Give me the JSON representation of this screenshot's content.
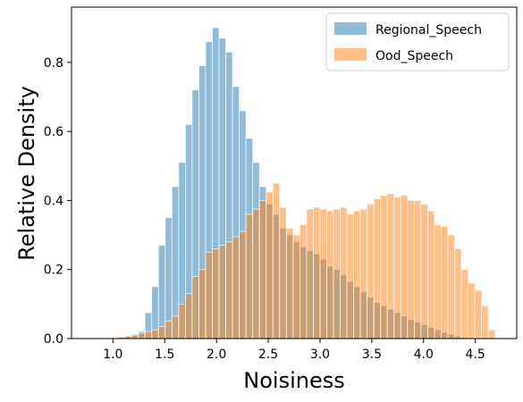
{
  "chart_data": {
    "type": "histogram",
    "xlabel": "Noisiness",
    "ylabel": "Relative Density",
    "xlim": [
      0.6,
      4.9
    ],
    "ylim": [
      0,
      0.96
    ],
    "bin_width": 0.065,
    "x_ticks": [
      1.0,
      1.5,
      2.0,
      2.5,
      3.0,
      3.5,
      4.0,
      4.5
    ],
    "x_tick_labels": [
      "1.0",
      "1.5",
      "2.0",
      "2.5",
      "3.0",
      "3.5",
      "4.0",
      "4.5"
    ],
    "y_ticks": [
      0.0,
      0.2,
      0.4,
      0.6,
      0.8
    ],
    "y_tick_labels": [
      "0.0",
      "0.2",
      "0.4",
      "0.6",
      "0.8"
    ],
    "grid": false,
    "legend_position": "top-right",
    "series": [
      {
        "name": "Regional_Speech",
        "color": "#1f77b4",
        "opacity": 0.5,
        "bin_starts": [
          0.92,
          0.985,
          1.05,
          1.115,
          1.18,
          1.245,
          1.31,
          1.375,
          1.44,
          1.505,
          1.57,
          1.635,
          1.7,
          1.765,
          1.83,
          1.895,
          1.96,
          2.025,
          2.09,
          2.155,
          2.22,
          2.285,
          2.35,
          2.415,
          2.48,
          2.545,
          2.61,
          2.675,
          2.74,
          2.805,
          2.87,
          2.935,
          3.0,
          3.065,
          3.13,
          3.195,
          3.26,
          3.325,
          3.39,
          3.455,
          3.52,
          3.585,
          3.65,
          3.715,
          3.78,
          3.845,
          3.91,
          3.975,
          4.04,
          4.105,
          4.17,
          4.235,
          4.3,
          4.365
        ],
        "values": [
          0.002,
          0.003,
          0.005,
          0.008,
          0.012,
          0.02,
          0.075,
          0.15,
          0.27,
          0.35,
          0.44,
          0.51,
          0.62,
          0.72,
          0.79,
          0.86,
          0.9,
          0.87,
          0.83,
          0.73,
          0.66,
          0.58,
          0.51,
          0.44,
          0.39,
          0.36,
          0.32,
          0.3,
          0.28,
          0.265,
          0.255,
          0.245,
          0.23,
          0.21,
          0.2,
          0.185,
          0.165,
          0.15,
          0.135,
          0.12,
          0.105,
          0.095,
          0.085,
          0.075,
          0.065,
          0.055,
          0.048,
          0.04,
          0.032,
          0.025,
          0.018,
          0.012,
          0.007,
          0.003
        ]
      },
      {
        "name": "Ood_Speech",
        "color": "#ff7f0e",
        "opacity": 0.5,
        "bin_starts": [
          0.92,
          0.985,
          1.05,
          1.115,
          1.18,
          1.245,
          1.31,
          1.375,
          1.44,
          1.505,
          1.57,
          1.635,
          1.7,
          1.765,
          1.83,
          1.895,
          1.96,
          2.025,
          2.09,
          2.155,
          2.22,
          2.285,
          2.35,
          2.415,
          2.48,
          2.545,
          2.61,
          2.675,
          2.74,
          2.805,
          2.87,
          2.935,
          3.0,
          3.065,
          3.13,
          3.195,
          3.26,
          3.325,
          3.39,
          3.455,
          3.52,
          3.585,
          3.65,
          3.715,
          3.78,
          3.845,
          3.91,
          3.975,
          4.04,
          4.105,
          4.17,
          4.235,
          4.3,
          4.365,
          4.43,
          4.495,
          4.56,
          4.625
        ],
        "values": [
          0.001,
          0.002,
          0.004,
          0.007,
          0.01,
          0.015,
          0.02,
          0.025,
          0.035,
          0.05,
          0.065,
          0.1,
          0.13,
          0.18,
          0.2,
          0.25,
          0.26,
          0.27,
          0.28,
          0.295,
          0.31,
          0.36,
          0.375,
          0.4,
          0.425,
          0.45,
          0.38,
          0.32,
          0.3,
          0.33,
          0.375,
          0.38,
          0.375,
          0.37,
          0.375,
          0.38,
          0.36,
          0.37,
          0.375,
          0.39,
          0.405,
          0.415,
          0.42,
          0.41,
          0.415,
          0.4,
          0.4,
          0.39,
          0.37,
          0.33,
          0.325,
          0.3,
          0.26,
          0.2,
          0.16,
          0.14,
          0.095,
          0.025
        ]
      }
    ]
  }
}
